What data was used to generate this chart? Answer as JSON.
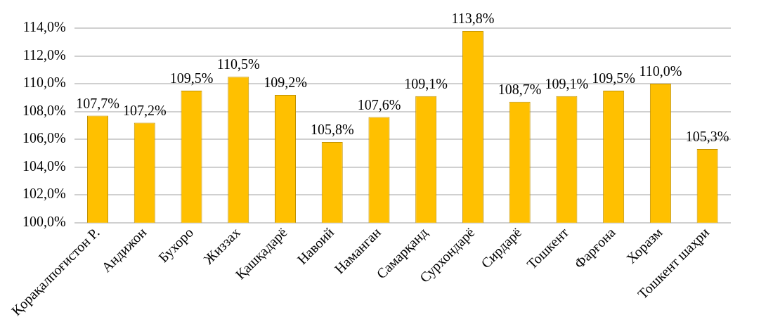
{
  "chart_data": {
    "type": "bar",
    "categories": [
      "Қорақалпоғистон Р.",
      "Андижон",
      "Бухоро",
      "Жиззах",
      "Қашқадарё",
      "Навоий",
      "Наманган",
      "Самарқанд",
      "Сурхондарё",
      "Сирдарё",
      "Тошкент",
      "Фарғона",
      "Хоразм",
      "Тошкент шаҳри"
    ],
    "values": [
      107.7,
      107.2,
      109.5,
      110.5,
      109.2,
      105.8,
      107.6,
      109.1,
      113.8,
      108.7,
      109.1,
      109.5,
      110.0,
      105.3
    ],
    "value_labels": [
      "107,7%",
      "107,2%",
      "109,5%",
      "110,5%",
      "109,2%",
      "105,8%",
      "107,6%",
      "109,1%",
      "113,8%",
      "108,7%",
      "109,1%",
      "109,5%",
      "110,0%",
      "105,3%"
    ],
    "color": "#ffc000",
    "ylim": [
      100,
      114
    ],
    "yticks": [
      {
        "value": 100,
        "label": "100,0%"
      },
      {
        "value": 102,
        "label": "102,0%"
      },
      {
        "value": 104,
        "label": "104,0%"
      },
      {
        "value": 106,
        "label": "106,0%"
      },
      {
        "value": 108,
        "label": "108,0%"
      },
      {
        "value": 110,
        "label": "110,0%"
      },
      {
        "value": 112,
        "label": "112,0%"
      },
      {
        "value": 114,
        "label": "114,0%"
      }
    ],
    "grid": "y",
    "legend": false
  }
}
